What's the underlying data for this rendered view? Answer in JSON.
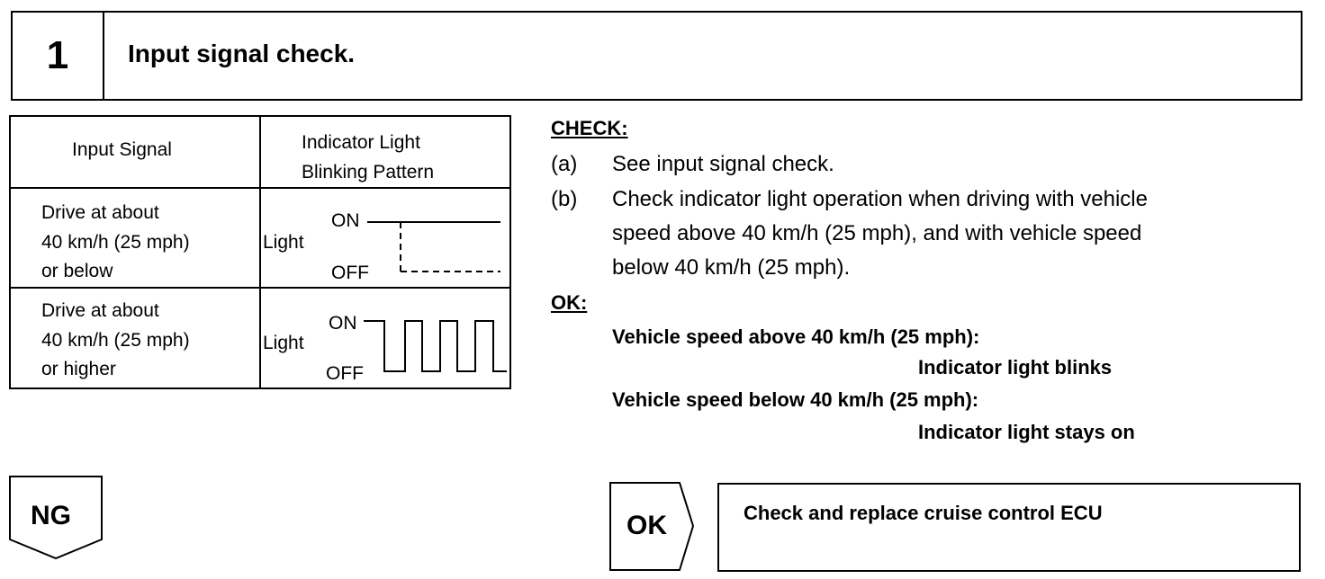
{
  "step": {
    "number": "1",
    "title": "Input signal check."
  },
  "table": {
    "headers": [
      "Input Signal",
      "Indicator Light",
      "Blinking Pattern"
    ],
    "rows": [
      {
        "signal": [
          "Drive at about",
          "40 km/h (25 mph)",
          "or below"
        ],
        "axis_label": "Light",
        "on": "ON",
        "off": "OFF",
        "pattern": "stays-on"
      },
      {
        "signal": [
          "Drive at about",
          "40 km/h (25 mph)",
          "or higher"
        ],
        "axis_label": "Light",
        "on": "ON",
        "off": "OFF",
        "pattern": "blinking"
      }
    ]
  },
  "check": {
    "heading": "CHECK:",
    "items": [
      {
        "marker": "(a)",
        "lines": [
          "See input signal check."
        ]
      },
      {
        "marker": "(b)",
        "lines": [
          "Check indicator light operation when driving with vehicle",
          "speed above 40 km/h (25 mph), and with vehicle speed",
          "below 40 km/h (25 mph)."
        ]
      }
    ]
  },
  "ok": {
    "heading": "OK:",
    "results": [
      {
        "condition": "Vehicle speed above 40 km/h (25 mph):",
        "result": "Indicator light blinks"
      },
      {
        "condition": "Vehicle speed below 40 km/h (25 mph):",
        "result": "Indicator light stays on"
      }
    ]
  },
  "flow": {
    "ng_label": "NG",
    "ok_label": "OK",
    "ok_action": "Check and replace cruise control ECU"
  }
}
